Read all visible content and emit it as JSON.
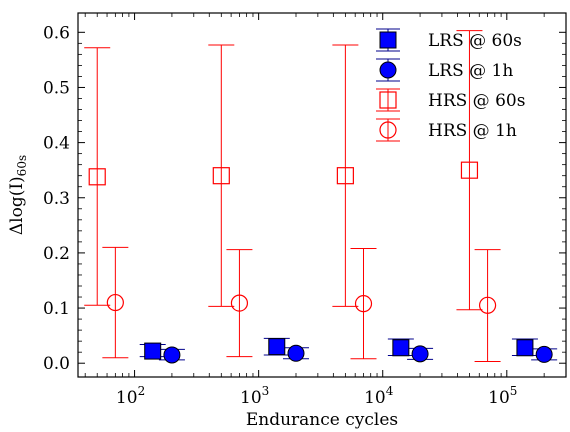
{
  "chart_data": {
    "type": "scatter",
    "xlabel": "Endurance cycles",
    "ylabel_base": "Δlog(I)",
    "ylabel_sub": "60s",
    "x_scale": "log",
    "xlim": [
      35,
      300000
    ],
    "ylim": [
      -0.025,
      0.635
    ],
    "x_ticks": [
      {
        "value": 100,
        "label": "10",
        "exp": "2"
      },
      {
        "value": 1000,
        "label": "10",
        "exp": "3"
      },
      {
        "value": 10000,
        "label": "10",
        "exp": "4"
      },
      {
        "value": 100000,
        "label": "10",
        "exp": "5"
      }
    ],
    "y_ticks": [
      {
        "value": 0.0,
        "label": "0.0"
      },
      {
        "value": 0.1,
        "label": "0.1"
      },
      {
        "value": 0.2,
        "label": "0.2"
      },
      {
        "value": 0.3,
        "label": "0.3"
      },
      {
        "value": 0.4,
        "label": "0.4"
      },
      {
        "value": 0.5,
        "label": "0.5"
      },
      {
        "value": 0.6,
        "label": "0.6"
      }
    ],
    "grid": false,
    "legend_position": "top-right",
    "series": [
      {
        "name": "LRS @ 60s",
        "marker": "square",
        "filled": true,
        "color": "#0000ff",
        "edge": "#000000",
        "err_color": "#00008b",
        "points": [
          {
            "x": 140,
            "y": 0.022,
            "err_low": 0.012,
            "err_high": 0.034
          },
          {
            "x": 1400,
            "y": 0.03,
            "err_low": 0.015,
            "err_high": 0.045
          },
          {
            "x": 14000,
            "y": 0.028,
            "err_low": 0.014,
            "err_high": 0.044
          },
          {
            "x": 140000,
            "y": 0.028,
            "err_low": 0.014,
            "err_high": 0.044
          }
        ]
      },
      {
        "name": "LRS @ 1h",
        "marker": "circle",
        "filled": true,
        "color": "#0000ff",
        "edge": "#000000",
        "err_color": "#00008b",
        "points": [
          {
            "x": 200,
            "y": 0.015,
            "err_low": 0.006,
            "err_high": 0.025
          },
          {
            "x": 2000,
            "y": 0.018,
            "err_low": 0.008,
            "err_high": 0.028
          },
          {
            "x": 20000,
            "y": 0.017,
            "err_low": 0.007,
            "err_high": 0.027
          },
          {
            "x": 200000,
            "y": 0.016,
            "err_low": 0.006,
            "err_high": 0.026
          }
        ]
      },
      {
        "name": "HRS @ 60s",
        "marker": "square",
        "filled": false,
        "color": "#ff0000",
        "edge": "#ff0000",
        "err_color": "#ff0000",
        "points": [
          {
            "x": 50,
            "y": 0.338,
            "err_low": 0.105,
            "err_high": 0.572
          },
          {
            "x": 500,
            "y": 0.34,
            "err_low": 0.103,
            "err_high": 0.577
          },
          {
            "x": 5000,
            "y": 0.34,
            "err_low": 0.103,
            "err_high": 0.577
          },
          {
            "x": 50000,
            "y": 0.35,
            "err_low": 0.097,
            "err_high": 0.603
          }
        ]
      },
      {
        "name": "HRS @ 1h",
        "marker": "circle",
        "filled": false,
        "color": "#ff0000",
        "edge": "#ff0000",
        "err_color": "#ff0000",
        "points": [
          {
            "x": 70,
            "y": 0.11,
            "err_low": 0.01,
            "err_high": 0.21
          },
          {
            "x": 700,
            "y": 0.109,
            "err_low": 0.012,
            "err_high": 0.206
          },
          {
            "x": 7000,
            "y": 0.108,
            "err_low": 0.008,
            "err_high": 0.208
          },
          {
            "x": 70000,
            "y": 0.105,
            "err_low": 0.003,
            "err_high": 0.206
          }
        ]
      }
    ]
  }
}
